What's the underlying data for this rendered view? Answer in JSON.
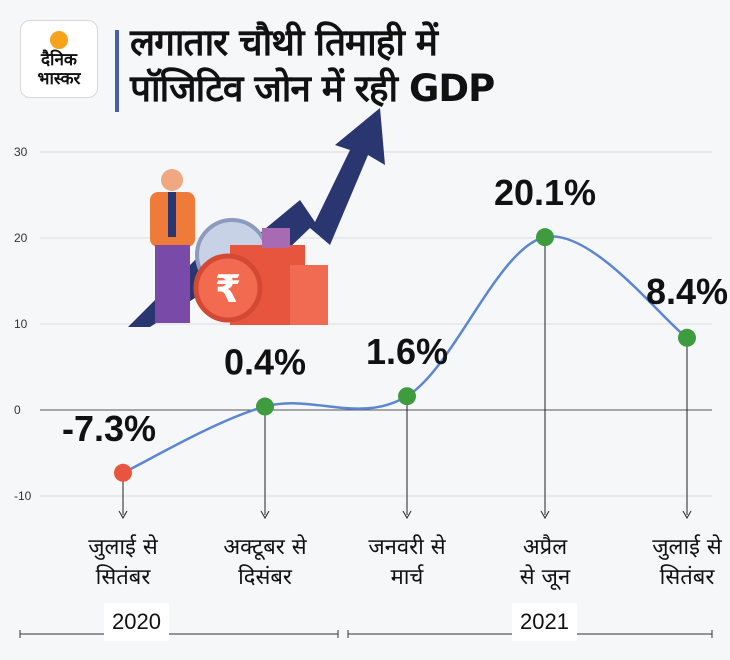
{
  "logo": {
    "line1": "दैनिक",
    "line2": "भास्कर"
  },
  "title": {
    "line1": "लगातार चौथी तिमाही में",
    "line2": "पॉजिटिव जोन में रही GDP"
  },
  "colors": {
    "line": "#5b86d1",
    "negative_point": "#e8553f",
    "positive_point": "#3e9b3e",
    "title_bar": "#4a5fa6",
    "arrow": "#2a3670"
  },
  "chart_data": {
    "type": "line",
    "categories": [
      "जुलाई से सितंबर",
      "अक्टूबर से दिसंबर",
      "जनवरी से मार्च",
      "अप्रैल से जून",
      "जुलाई से सितंबर"
    ],
    "category_lines": [
      [
        "जुलाई से",
        "सितंबर"
      ],
      [
        "अक्टूबर से",
        "दिसंबर"
      ],
      [
        "जनवरी से",
        "मार्च"
      ],
      [
        "अप्रैल",
        "से जून"
      ],
      [
        "जुलाई से",
        "सितंबर"
      ]
    ],
    "values": [
      -7.3,
      0.4,
      1.6,
      20.1,
      8.4
    ],
    "data_labels": [
      "-7.3%",
      "0.4%",
      "1.6%",
      "20.1%",
      "8.4%"
    ],
    "yticks": [
      30,
      20,
      10,
      0,
      -10
    ],
    "ylim": [
      -10,
      30
    ],
    "grid": true,
    "years": [
      "2020",
      "2021"
    ]
  }
}
